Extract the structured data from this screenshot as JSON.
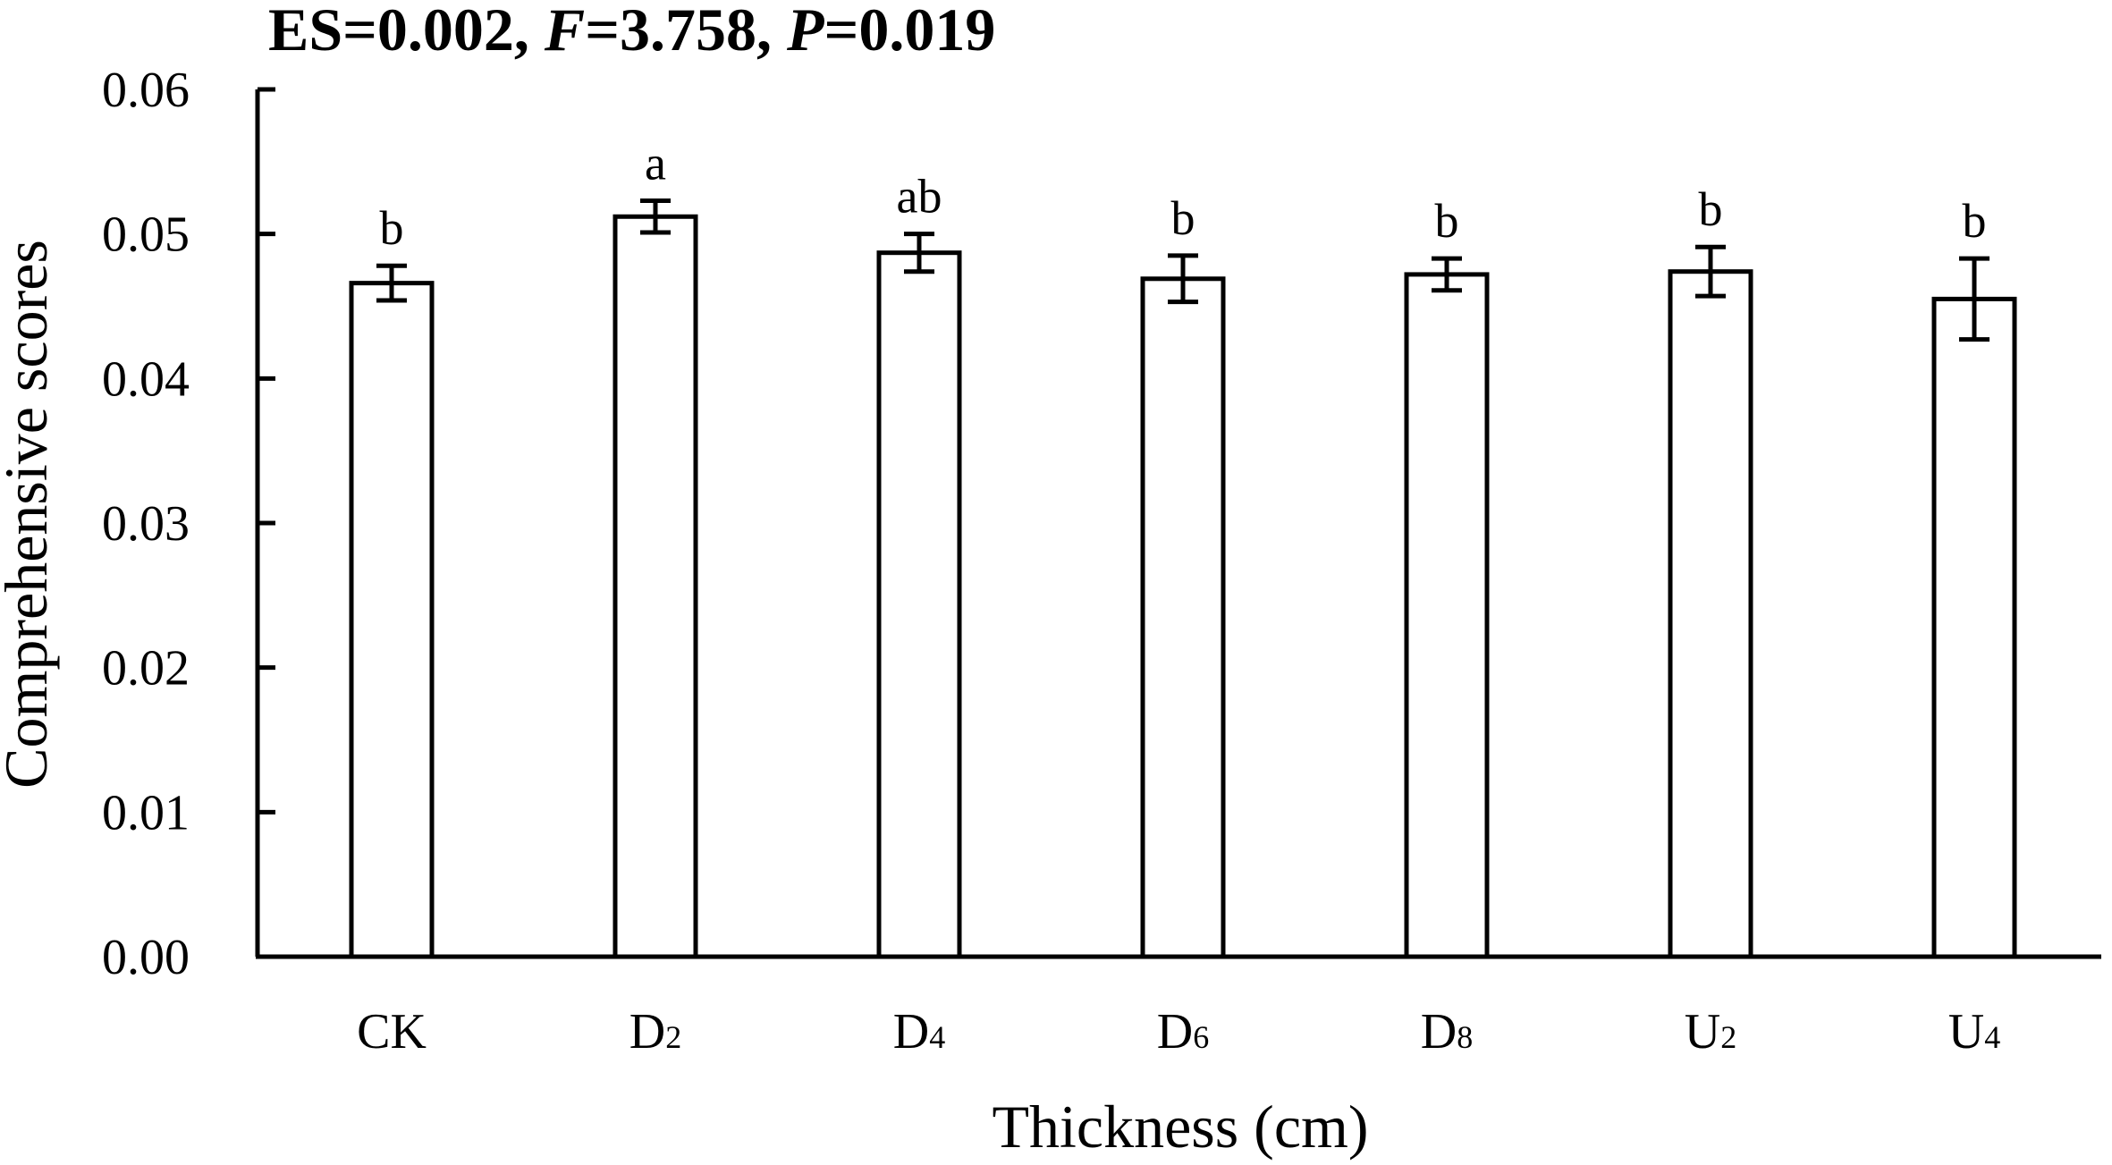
{
  "chart_data": {
    "type": "bar",
    "title_parts": [
      {
        "text": "ES=0.002, ",
        "italic": false
      },
      {
        "text": "F",
        "italic": true
      },
      {
        "text": "=3.758, ",
        "italic": false
      },
      {
        "text": "P",
        "italic": true
      },
      {
        "text": "=0.019",
        "italic": false
      }
    ],
    "xlabel": "Thickness (cm)",
    "ylabel": "Comprehensive scores",
    "ylim": [
      0,
      0.06
    ],
    "yticks": [
      "0.00",
      "0.01",
      "0.02",
      "0.03",
      "0.04",
      "0.05",
      "0.06"
    ],
    "categories": [
      {
        "base": "CK",
        "sub": ""
      },
      {
        "base": "D",
        "sub": "2"
      },
      {
        "base": "D",
        "sub": "4"
      },
      {
        "base": "D",
        "sub": "6"
      },
      {
        "base": "D",
        "sub": "8"
      },
      {
        "base": "U",
        "sub": "2"
      },
      {
        "base": "U",
        "sub": "4"
      }
    ],
    "values": [
      0.0466,
      0.0512,
      0.0487,
      0.0469,
      0.0472,
      0.0474,
      0.0455
    ],
    "errors": [
      0.0012,
      0.0011,
      0.0013,
      0.0016,
      0.0011,
      0.0017,
      0.0028
    ],
    "significance": [
      "b",
      "a",
      "ab",
      "b",
      "b",
      "b",
      "b"
    ],
    "bar_fill": "#ffffff",
    "bar_stroke": "#000000",
    "grid": false,
    "legend": "none"
  }
}
